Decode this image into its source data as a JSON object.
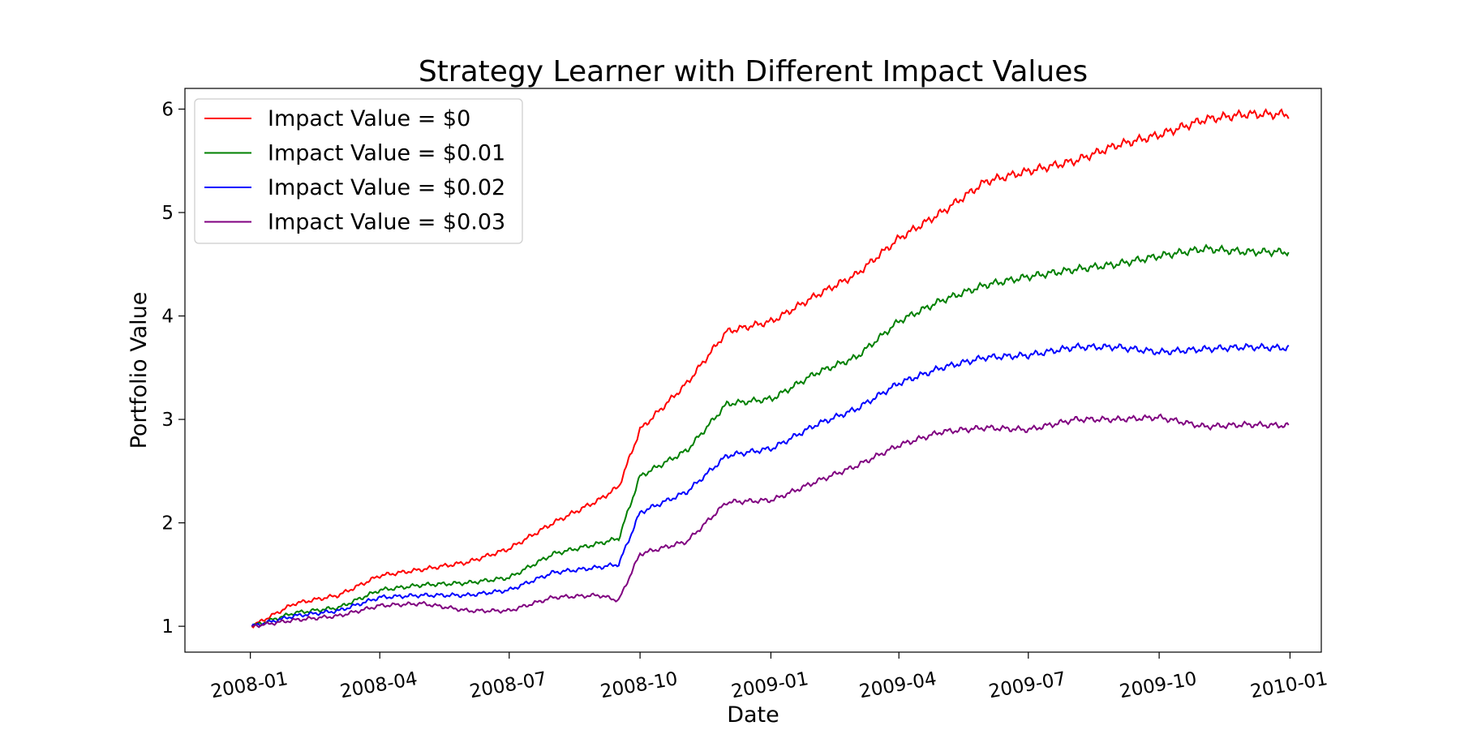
{
  "chart_data": {
    "type": "line",
    "title": "Strategy Learner with Different Impact Values",
    "xlabel": "Date",
    "ylabel": "Portfolio Value",
    "xlim": [
      "2007-11-16",
      "2010-01-23"
    ],
    "ylim": [
      0.75,
      6.2
    ],
    "x_ticks": [
      "2008-01",
      "2008-04",
      "2008-07",
      "2008-10",
      "2009-01",
      "2009-04",
      "2009-07",
      "2009-10",
      "2010-01"
    ],
    "y_ticks": [
      1,
      2,
      3,
      4,
      5,
      6
    ],
    "grid": false,
    "legend_position": "upper-left",
    "x": [
      "2008-01-02",
      "2008-02-01",
      "2008-03-03",
      "2008-04-01",
      "2008-05-01",
      "2008-06-02",
      "2008-07-01",
      "2008-08-01",
      "2008-09-02",
      "2008-09-16",
      "2008-10-01",
      "2008-11-03",
      "2008-12-01",
      "2009-01-02",
      "2009-02-02",
      "2009-03-02",
      "2009-04-01",
      "2009-05-01",
      "2009-06-01",
      "2009-07-01",
      "2009-08-03",
      "2009-09-01",
      "2009-10-01",
      "2009-11-02",
      "2009-12-01",
      "2009-12-31"
    ],
    "series": [
      {
        "name": "Impact Value = $0",
        "color": "#ff0000",
        "values": [
          1.0,
          1.22,
          1.3,
          1.49,
          1.55,
          1.62,
          1.75,
          2.0,
          2.22,
          2.35,
          2.9,
          3.35,
          3.85,
          3.95,
          4.2,
          4.4,
          4.75,
          5.0,
          5.3,
          5.4,
          5.5,
          5.65,
          5.75,
          5.9,
          5.95,
          5.95
        ]
      },
      {
        "name": "Impact Value = $0.01",
        "color": "#008000",
        "values": [
          1.0,
          1.13,
          1.18,
          1.35,
          1.4,
          1.42,
          1.47,
          1.7,
          1.8,
          1.85,
          2.45,
          2.7,
          3.15,
          3.2,
          3.45,
          3.6,
          3.95,
          4.15,
          4.3,
          4.38,
          4.45,
          4.5,
          4.58,
          4.65,
          4.62,
          4.62
        ]
      },
      {
        "name": "Impact Value = $0.02",
        "color": "#0000ff",
        "values": [
          1.0,
          1.1,
          1.15,
          1.28,
          1.3,
          1.3,
          1.35,
          1.52,
          1.57,
          1.6,
          2.1,
          2.3,
          2.65,
          2.72,
          2.95,
          3.1,
          3.35,
          3.5,
          3.6,
          3.62,
          3.7,
          3.7,
          3.65,
          3.68,
          3.7,
          3.69
        ]
      },
      {
        "name": "Impact Value = $0.03",
        "color": "#800080",
        "values": [
          1.0,
          1.06,
          1.1,
          1.2,
          1.22,
          1.15,
          1.15,
          1.28,
          1.3,
          1.25,
          1.7,
          1.82,
          2.2,
          2.22,
          2.4,
          2.55,
          2.75,
          2.88,
          2.92,
          2.9,
          3.0,
          3.0,
          3.02,
          2.93,
          2.95,
          2.94
        ]
      }
    ]
  }
}
